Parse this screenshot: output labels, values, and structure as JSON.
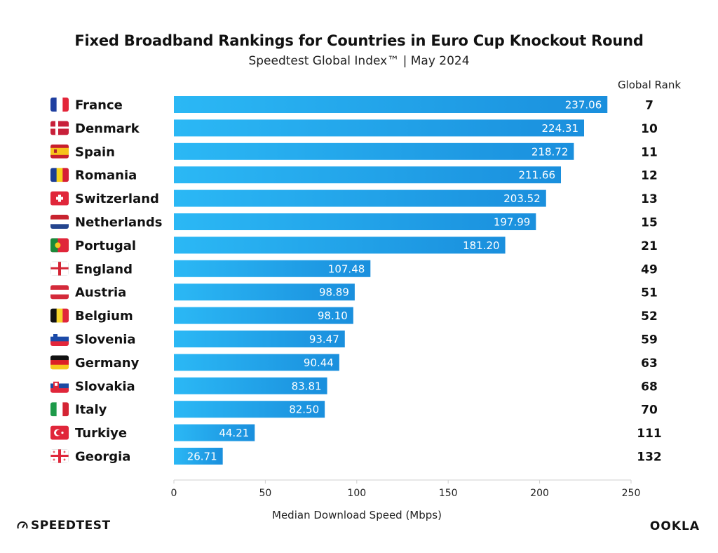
{
  "header": {
    "title": "Fixed Broadband Rankings for Countries in Euro Cup Knockout Round",
    "subtitle": "Speedtest Global Index™ | May 2024"
  },
  "footer": {
    "left_logo": "SPEEDTEST",
    "right_logo": "OOKLA"
  },
  "colors": {
    "bar_start": "#2bb8f5",
    "bar_end": "#1a8fdd",
    "axis": "#cfcfcf",
    "text": "#111111"
  },
  "chart_data": {
    "type": "bar",
    "orientation": "horizontal",
    "xlabel": "Median Download Speed (Mbps)",
    "rank_header": "Global Rank",
    "xlim": [
      0,
      250
    ],
    "xticks": [
      0,
      50,
      100,
      150,
      200,
      250
    ],
    "grid": false,
    "categories": [
      "France",
      "Denmark",
      "Spain",
      "Romania",
      "Switzerland",
      "Netherlands",
      "Portugal",
      "England",
      "Austria",
      "Belgium",
      "Slovenia",
      "Germany",
      "Slovakia",
      "Italy",
      "Turkiye",
      "Georgia"
    ],
    "value_labels": [
      "237.06",
      "224.31",
      "218.72",
      "211.66",
      "203.52",
      "197.99",
      "181.20",
      "107.48",
      "98.89",
      "98.10",
      "93.47",
      "90.44",
      "83.81",
      "82.50",
      "44.21",
      "26.71"
    ],
    "values": [
      237.06,
      224.31,
      218.72,
      211.66,
      203.52,
      197.99,
      181.2,
      107.48,
      98.89,
      98.1,
      93.47,
      90.44,
      83.81,
      82.5,
      44.21,
      26.71
    ],
    "ranks": [
      "7",
      "10",
      "11",
      "12",
      "13",
      "15",
      "21",
      "49",
      "51",
      "52",
      "59",
      "63",
      "68",
      "70",
      "111",
      "132"
    ],
    "flags": [
      "france-flag-icon",
      "denmark-flag-icon",
      "spain-flag-icon",
      "romania-flag-icon",
      "switzerland-flag-icon",
      "netherlands-flag-icon",
      "portugal-flag-icon",
      "england-flag-icon",
      "austria-flag-icon",
      "belgium-flag-icon",
      "slovenia-flag-icon",
      "germany-flag-icon",
      "slovakia-flag-icon",
      "italy-flag-icon",
      "turkiye-flag-icon",
      "georgia-flag-icon"
    ]
  }
}
